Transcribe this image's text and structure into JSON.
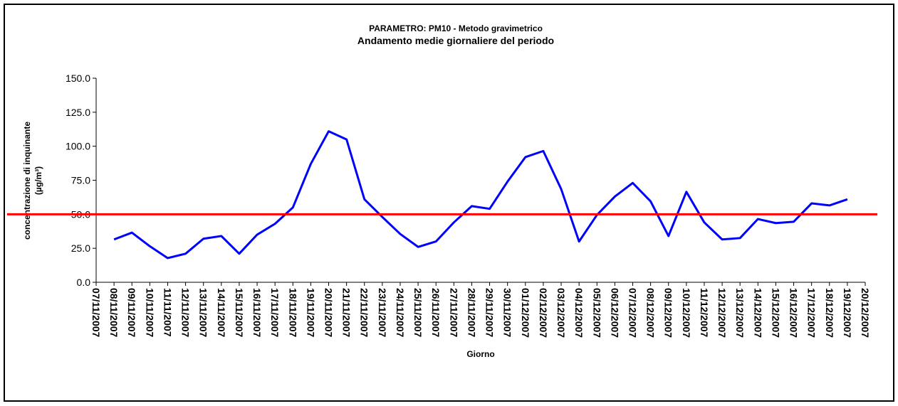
{
  "chart_data": {
    "type": "line",
    "title": "PARAMETRO: PM10 - Metodo gravimetrico",
    "subtitle": "Andamento medie giornaliere del periodo",
    "y_label": [
      "concentrazione di inquinante",
      "(µg/m³)"
    ],
    "x_label": "Giorno",
    "categories": [
      "07/11/2007",
      "08/11/2007",
      "09/11/2007",
      "10/11/2007",
      "11/11/2007",
      "12/11/2007",
      "13/11/2007",
      "14/11/2007",
      "15/11/2007",
      "16/11/2007",
      "17/11/2007",
      "18/11/2007",
      "19/11/2007",
      "20/11/2007",
      "21/11/2007",
      "22/11/2007",
      "23/11/2007",
      "24/11/2007",
      "25/11/2007",
      "26/11/2007",
      "27/11/2007",
      "28/11/2007",
      "29/11/2007",
      "30/11/2007",
      "01/12/2007",
      "02/12/2007",
      "03/12/2007",
      "04/12/2007",
      "05/12/2007",
      "06/12/2007",
      "07/12/2007",
      "08/12/2007",
      "09/12/2007",
      "10/12/2007",
      "11/12/2007",
      "12/12/2007",
      "13/12/2007",
      "14/12/2007",
      "15/12/2007",
      "16/12/2007",
      "17/12/2007",
      "18/12/2007",
      "19/12/2007",
      "20/12/2007"
    ],
    "values": [
      null,
      31.5,
      36.5,
      26.5,
      17.8,
      21,
      32,
      34,
      21,
      35,
      43,
      55,
      87,
      111,
      105,
      61,
      48,
      35.5,
      26,
      30,
      44,
      56,
      54,
      74,
      92,
      96.5,
      68.5,
      30,
      49.5,
      63,
      73,
      59.5,
      34,
      66.5,
      44,
      31.5,
      32.5,
      46.5,
      43.5,
      44.5,
      58,
      56.5,
      61,
      null
    ],
    "color": "#0000ff",
    "threshold": 50,
    "threshold_color": "#ff0000",
    "ylim": [
      0,
      150
    ],
    "yticks": [
      {
        "value": 0,
        "label": "0.0"
      },
      {
        "value": 25,
        "label": "25.0"
      },
      {
        "value": 50,
        "label": "50.0"
      },
      {
        "value": 75,
        "label": "75.0"
      },
      {
        "value": 100,
        "label": "100.0"
      },
      {
        "value": 125,
        "label": "125.0"
      },
      {
        "value": 150,
        "label": "150.0"
      }
    ],
    "grid": false
  }
}
